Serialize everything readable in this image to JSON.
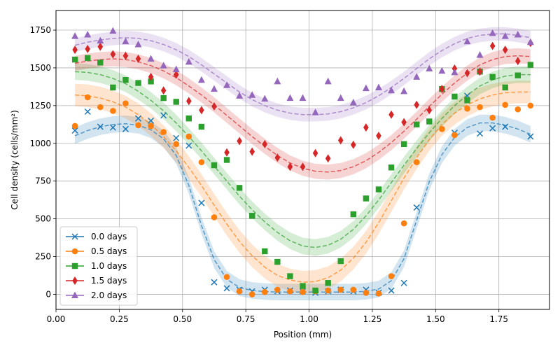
{
  "chart_data": {
    "type": "scatter",
    "title": "",
    "xlabel": "Position (mm)",
    "ylabel": "Cell density (cells/mm²)",
    "xlim": [
      0.0,
      1.95
    ],
    "ylim": [
      -100,
      1880
    ],
    "xticks": [
      0.0,
      0.25,
      0.5,
      0.75,
      1.0,
      1.25,
      1.5,
      1.75
    ],
    "xtick_labels": [
      "0.00",
      "0.25",
      "0.50",
      "0.75",
      "1.00",
      "1.25",
      "1.50",
      "1.75"
    ],
    "yticks": [
      0,
      250,
      500,
      750,
      1000,
      1250,
      1500,
      1750
    ],
    "ytick_labels": [
      "0",
      "250",
      "500",
      "750",
      "1000",
      "1250",
      "1500",
      "1750"
    ],
    "grid": true,
    "legend_position": "lower-left",
    "x": [
      0.075,
      0.125,
      0.175,
      0.225,
      0.275,
      0.325,
      0.375,
      0.425,
      0.475,
      0.525,
      0.575,
      0.625,
      0.675,
      0.725,
      0.775,
      0.825,
      0.875,
      0.925,
      0.975,
      1.025,
      1.075,
      1.125,
      1.175,
      1.225,
      1.275,
      1.325,
      1.375,
      1.425,
      1.475,
      1.525,
      1.575,
      1.625,
      1.675,
      1.725,
      1.775,
      1.825,
      1.875
    ],
    "series": [
      {
        "name": "0.0 days",
        "marker": "x",
        "color": "#1f77b4",
        "points": [
          [
            0.075,
            1085
          ],
          [
            0.125,
            1210
          ],
          [
            0.175,
            1110
          ],
          [
            0.225,
            1105
          ],
          [
            0.275,
            1095
          ],
          [
            0.325,
            1165
          ],
          [
            0.375,
            1150
          ],
          [
            0.425,
            1185
          ],
          [
            0.475,
            1035
          ],
          [
            0.525,
            985
          ],
          [
            0.575,
            605
          ],
          [
            0.625,
            80
          ],
          [
            0.675,
            40
          ],
          [
            0.725,
            30
          ],
          [
            0.775,
            20
          ],
          [
            0.825,
            30
          ],
          [
            0.875,
            20
          ],
          [
            0.925,
            25
          ],
          [
            0.975,
            20
          ],
          [
            1.025,
            10
          ],
          [
            1.075,
            20
          ],
          [
            1.125,
            30
          ],
          [
            1.175,
            20
          ],
          [
            1.225,
            30
          ],
          [
            1.275,
            10
          ],
          [
            1.325,
            25
          ],
          [
            1.375,
            75
          ],
          [
            1.425,
            575
          ],
          [
            1.575,
            1070
          ],
          [
            1.625,
            1315
          ],
          [
            1.675,
            1065
          ],
          [
            1.725,
            1100
          ],
          [
            1.775,
            1110
          ],
          [
            1.875,
            1045
          ]
        ],
        "fit": [
          1050,
          1085,
          1110,
          1125,
          1130,
          1120,
          1090,
          1030,
          920,
          720,
          455,
          230,
          100,
          45,
          25,
          18,
          15,
          15,
          15,
          15,
          15,
          15,
          15,
          20,
          35,
          90,
          235,
          490,
          745,
          925,
          1040,
          1105,
          1135,
          1135,
          1120,
          1095,
          1060
        ],
        "band": 55
      },
      {
        "name": "0.5 days",
        "marker": "o",
        "color": "#ff7f0e",
        "points": [
          [
            0.075,
            1115
          ],
          [
            0.125,
            1305
          ],
          [
            0.175,
            1240
          ],
          [
            0.225,
            1215
          ],
          [
            0.275,
            1265
          ],
          [
            0.325,
            1120
          ],
          [
            0.375,
            1115
          ],
          [
            0.425,
            1075
          ],
          [
            0.475,
            995
          ],
          [
            0.525,
            1045
          ],
          [
            0.575,
            875
          ],
          [
            0.625,
            510
          ],
          [
            0.675,
            115
          ],
          [
            0.725,
            20
          ],
          [
            0.775,
            0
          ],
          [
            0.825,
            15
          ],
          [
            0.875,
            30
          ],
          [
            0.925,
            20
          ],
          [
            0.975,
            15
          ],
          [
            1.025,
            20
          ],
          [
            1.075,
            25
          ],
          [
            1.125,
            30
          ],
          [
            1.175,
            30
          ],
          [
            1.225,
            10
          ],
          [
            1.275,
            5
          ],
          [
            1.325,
            120
          ],
          [
            1.375,
            470
          ],
          [
            1.425,
            875
          ],
          [
            1.525,
            1095
          ],
          [
            1.575,
            1055
          ],
          [
            1.625,
            1230
          ],
          [
            1.675,
            1240
          ],
          [
            1.725,
            1170
          ],
          [
            1.775,
            1255
          ],
          [
            1.825,
            1225
          ],
          [
            1.875,
            1250
          ]
        ],
        "fit": [
          1320,
          1315,
          1300,
          1275,
          1240,
          1190,
          1125,
          1045,
          950,
          840,
          720,
          590,
          465,
          350,
          255,
          180,
          125,
          95,
          80,
          85,
          110,
          160,
          240,
          345,
          475,
          620,
          770,
          905,
          1025,
          1125,
          1200,
          1255,
          1295,
          1320,
          1335,
          1340,
          1340
        ],
        "band": 75
      },
      {
        "name": "1.0 days",
        "marker": "s",
        "color": "#2ca02c",
        "points": [
          [
            0.075,
            1555
          ],
          [
            0.125,
            1565
          ],
          [
            0.175,
            1535
          ],
          [
            0.225,
            1370
          ],
          [
            0.275,
            1420
          ],
          [
            0.325,
            1400
          ],
          [
            0.375,
            1410
          ],
          [
            0.425,
            1300
          ],
          [
            0.475,
            1275
          ],
          [
            0.525,
            1165
          ],
          [
            0.575,
            1110
          ],
          [
            0.625,
            855
          ],
          [
            0.675,
            890
          ],
          [
            0.725,
            705
          ],
          [
            0.775,
            520
          ],
          [
            0.825,
            285
          ],
          [
            0.875,
            215
          ],
          [
            0.925,
            120
          ],
          [
            0.975,
            55
          ],
          [
            1.025,
            25
          ],
          [
            1.075,
            75
          ],
          [
            1.125,
            220
          ],
          [
            1.175,
            530
          ],
          [
            1.225,
            635
          ],
          [
            1.275,
            695
          ],
          [
            1.325,
            840
          ],
          [
            1.375,
            995
          ],
          [
            1.425,
            1125
          ],
          [
            1.475,
            1145
          ],
          [
            1.525,
            1360
          ],
          [
            1.575,
            1310
          ],
          [
            1.625,
            1285
          ],
          [
            1.675,
            1475
          ],
          [
            1.725,
            1440
          ],
          [
            1.775,
            1370
          ],
          [
            1.825,
            1450
          ],
          [
            1.875,
            1520
          ]
        ],
        "fit": [
          1475,
          1470,
          1455,
          1430,
          1395,
          1345,
          1285,
          1215,
          1135,
          1045,
          950,
          850,
          750,
          650,
          560,
          480,
          410,
          355,
          320,
          310,
          325,
          365,
          430,
          520,
          625,
          740,
          855,
          965,
          1070,
          1165,
          1250,
          1320,
          1380,
          1420,
          1445,
          1455,
          1455
        ],
        "band": 55
      },
      {
        "name": "1.5 days",
        "marker": "d",
        "color": "#d62728",
        "points": [
          [
            0.075,
            1620
          ],
          [
            0.125,
            1625
          ],
          [
            0.175,
            1640
          ],
          [
            0.225,
            1590
          ],
          [
            0.275,
            1580
          ],
          [
            0.325,
            1560
          ],
          [
            0.375,
            1440
          ],
          [
            0.425,
            1350
          ],
          [
            0.475,
            1455
          ],
          [
            0.525,
            1280
          ],
          [
            0.575,
            1220
          ],
          [
            0.625,
            1245
          ],
          [
            0.675,
            940
          ],
          [
            0.725,
            1015
          ],
          [
            0.775,
            945
          ],
          [
            0.825,
            995
          ],
          [
            0.875,
            905
          ],
          [
            0.925,
            845
          ],
          [
            0.975,
            845
          ],
          [
            1.025,
            935
          ],
          [
            1.075,
            900
          ],
          [
            1.125,
            1020
          ],
          [
            1.175,
            990
          ],
          [
            1.225,
            1105
          ],
          [
            1.275,
            1050
          ],
          [
            1.325,
            1190
          ],
          [
            1.375,
            1140
          ],
          [
            1.425,
            1255
          ],
          [
            1.475,
            1220
          ],
          [
            1.525,
            1360
          ],
          [
            1.575,
            1495
          ],
          [
            1.625,
            1465
          ],
          [
            1.675,
            1475
          ],
          [
            1.725,
            1645
          ],
          [
            1.775,
            1620
          ],
          [
            1.825,
            1545
          ],
          [
            1.875,
            1665
          ]
        ],
        "fit": [
          1530,
          1545,
          1555,
          1560,
          1555,
          1540,
          1515,
          1480,
          1435,
          1380,
          1320,
          1255,
          1185,
          1115,
          1045,
          980,
          920,
          870,
          835,
          815,
          810,
          820,
          845,
          885,
          940,
          1005,
          1080,
          1160,
          1245,
          1325,
          1400,
          1465,
          1520,
          1555,
          1575,
          1580,
          1575
        ],
        "band": 50
      },
      {
        "name": "2.0 days",
        "marker": "^",
        "color": "#9467bd",
        "points": [
          [
            0.075,
            1710
          ],
          [
            0.125,
            1720
          ],
          [
            0.175,
            1680
          ],
          [
            0.225,
            1745
          ],
          [
            0.275,
            1675
          ],
          [
            0.325,
            1655
          ],
          [
            0.375,
            1560
          ],
          [
            0.425,
            1515
          ],
          [
            0.475,
            1490
          ],
          [
            0.525,
            1540
          ],
          [
            0.575,
            1420
          ],
          [
            0.625,
            1360
          ],
          [
            0.675,
            1385
          ],
          [
            0.725,
            1315
          ],
          [
            0.775,
            1320
          ],
          [
            0.825,
            1295
          ],
          [
            0.875,
            1410
          ],
          [
            0.925,
            1300
          ],
          [
            0.975,
            1300
          ],
          [
            1.025,
            1205
          ],
          [
            1.075,
            1410
          ],
          [
            1.125,
            1300
          ],
          [
            1.175,
            1270
          ],
          [
            1.225,
            1365
          ],
          [
            1.275,
            1370
          ],
          [
            1.325,
            1350
          ],
          [
            1.375,
            1345
          ],
          [
            1.425,
            1440
          ],
          [
            1.475,
            1495
          ],
          [
            1.525,
            1480
          ],
          [
            1.575,
            1470
          ],
          [
            1.625,
            1675
          ],
          [
            1.675,
            1585
          ],
          [
            1.725,
            1730
          ],
          [
            1.775,
            1710
          ],
          [
            1.825,
            1720
          ],
          [
            1.875,
            1670
          ]
        ],
        "fit": [
          1650,
          1670,
          1685,
          1695,
          1700,
          1695,
          1680,
          1655,
          1620,
          1575,
          1520,
          1460,
          1400,
          1340,
          1290,
          1250,
          1220,
          1200,
          1190,
          1190,
          1195,
          1210,
          1235,
          1270,
          1315,
          1370,
          1430,
          1495,
          1560,
          1615,
          1660,
          1695,
          1715,
          1725,
          1725,
          1715,
          1700
        ],
        "band": 45
      }
    ]
  }
}
